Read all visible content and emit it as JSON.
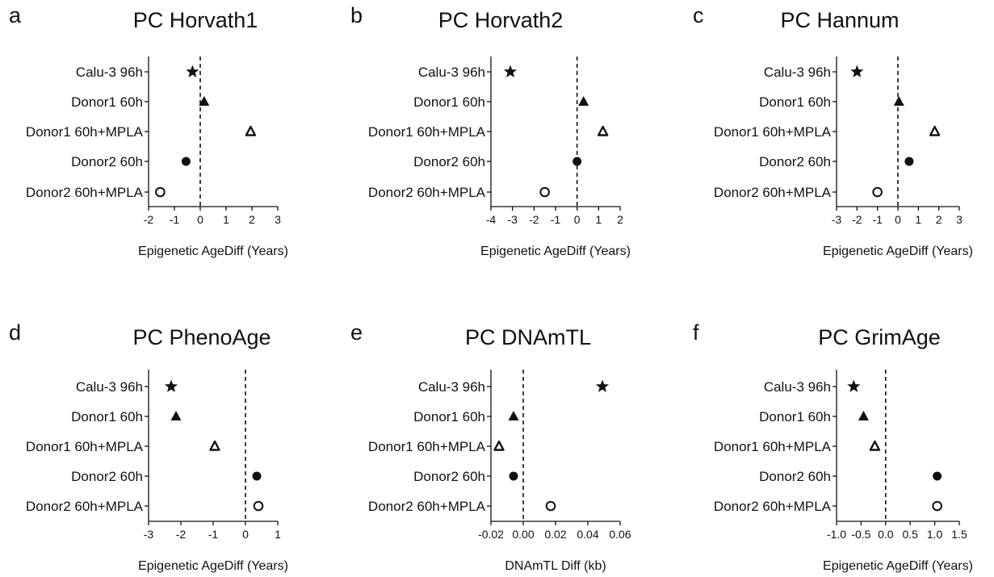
{
  "chart_data": [
    {
      "type": "scatter",
      "panel": "a",
      "title": "PC Horvath1",
      "xlabel": "Epigenetic AgeDiff (Years)",
      "categories": [
        "Calu-3 96h",
        "Donor1 60h",
        "Donor1 60h+MPLA",
        "Donor2 60h",
        "Donor2 60h+MPLA"
      ],
      "values": [
        -0.3,
        0.15,
        1.95,
        -0.55,
        -1.55
      ],
      "markers": [
        "star",
        "triangle-filled",
        "triangle-open",
        "circle-filled",
        "circle-open"
      ],
      "xlim": [
        -2,
        3
      ],
      "xticks": [
        -2,
        -1,
        0,
        1,
        2,
        3
      ],
      "xtick_labels": [
        "-2",
        "-1",
        "0",
        "1",
        "2",
        "3"
      ],
      "reference_line": 0
    },
    {
      "type": "scatter",
      "panel": "b",
      "title": "PC Horvath2",
      "xlabel": "Epigenetic AgeDiff (Years)",
      "categories": [
        "Calu-3 96h",
        "Donor1 60h",
        "Donor1 60h+MPLA",
        "Donor2 60h",
        "Donor2 60h+MPLA"
      ],
      "values": [
        -3.1,
        0.3,
        1.2,
        0.0,
        -1.5
      ],
      "markers": [
        "star",
        "triangle-filled",
        "triangle-open",
        "circle-filled",
        "circle-open"
      ],
      "xlim": [
        -4,
        2
      ],
      "xticks": [
        -4,
        -3,
        -2,
        -1,
        0,
        1,
        2
      ],
      "xtick_labels": [
        "-4",
        "-3",
        "-2",
        "-1",
        "0",
        "1",
        "2"
      ],
      "reference_line": 0
    },
    {
      "type": "scatter",
      "panel": "c",
      "title": "PC Hannum",
      "xlabel": "Epigenetic AgeDiff (Years)",
      "categories": [
        "Calu-3 96h",
        "Donor1 60h",
        "Donor1 60h+MPLA",
        "Donor2 60h",
        "Donor2 60h+MPLA"
      ],
      "values": [
        -2.0,
        0.05,
        1.8,
        0.55,
        -1.0
      ],
      "markers": [
        "star",
        "triangle-filled",
        "triangle-open",
        "circle-filled",
        "circle-open"
      ],
      "xlim": [
        -3,
        3
      ],
      "xticks": [
        -3,
        -2,
        -1,
        0,
        1,
        2,
        3
      ],
      "xtick_labels": [
        "-3",
        "-2",
        "-1",
        "0",
        "1",
        "2",
        "3"
      ],
      "reference_line": 0
    },
    {
      "type": "scatter",
      "panel": "d",
      "title": "PC PhenoAge",
      "xlabel": "Epigenetic AgeDiff (Years)",
      "categories": [
        "Calu-3 96h",
        "Donor1 60h",
        "Donor1 60h+MPLA",
        "Donor2 60h",
        "Donor2 60h+MPLA"
      ],
      "values": [
        -2.3,
        -2.15,
        -0.95,
        0.35,
        0.4
      ],
      "markers": [
        "star",
        "triangle-filled",
        "triangle-open",
        "circle-filled",
        "circle-open"
      ],
      "xlim": [
        -3,
        1
      ],
      "xticks": [
        -3,
        -2,
        -1,
        0,
        1
      ],
      "xtick_labels": [
        "-3",
        "-2",
        "-1",
        "0",
        "1"
      ],
      "reference_line": 0
    },
    {
      "type": "scatter",
      "panel": "e",
      "title": "PC DNAmTL",
      "xlabel": "DNAmTL Diff (kb)",
      "categories": [
        "Calu-3 96h",
        "Donor1 60h",
        "Donor1 60h+MPLA",
        "Donor2 60h",
        "Donor2 60h+MPLA"
      ],
      "values": [
        0.049,
        -0.006,
        -0.015,
        -0.006,
        0.017
      ],
      "markers": [
        "star",
        "triangle-filled",
        "triangle-open",
        "circle-filled",
        "circle-open"
      ],
      "xlim": [
        -0.02,
        0.06
      ],
      "xticks": [
        -0.02,
        0.0,
        0.02,
        0.04,
        0.06
      ],
      "xtick_labels": [
        "-0.02",
        "0.00",
        "0.02",
        "0.04",
        "0.06"
      ],
      "reference_line": 0
    },
    {
      "type": "scatter",
      "panel": "f",
      "title": "PC GrimAge",
      "xlabel": "Epigenetic AgeDiff (Years)",
      "categories": [
        "Calu-3 96h",
        "Donor1 60h",
        "Donor1 60h+MPLA",
        "Donor2 60h",
        "Donor2 60h+MPLA"
      ],
      "values": [
        -0.65,
        -0.45,
        -0.22,
        1.05,
        1.05
      ],
      "markers": [
        "star",
        "triangle-filled",
        "triangle-open",
        "circle-filled",
        "circle-open"
      ],
      "xlim": [
        -1.0,
        1.5
      ],
      "xticks": [
        -1.0,
        -0.5,
        0.0,
        0.5,
        1.0,
        1.5
      ],
      "xtick_labels": [
        "-1.0",
        "-0.5",
        "0.0",
        "0.5",
        "1.0",
        "1.5"
      ],
      "reference_line": 0
    }
  ]
}
